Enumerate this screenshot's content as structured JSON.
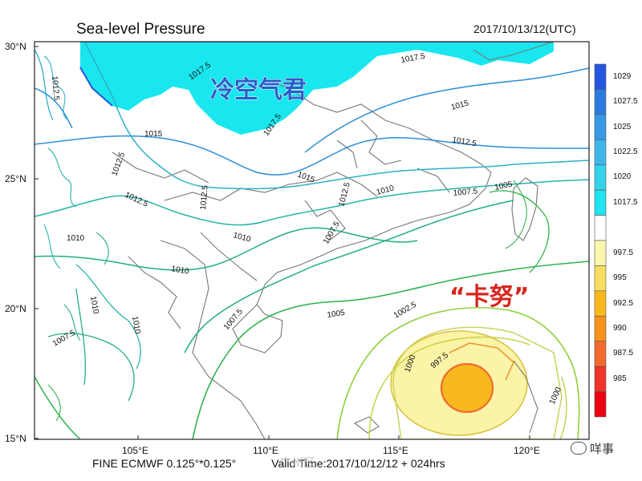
{
  "title": "Sea-level Pressure",
  "valid_date": "2017/10/13/12(UTC)",
  "footer": "FINE ECMWF 0.125°*0.125°",
  "valid_time": "Valid Time:2017/10/12/12 + 024hrs",
  "watermark_text": "广州区",
  "brand_text": "咩事",
  "lat_ticks": [
    "30°N",
    "25°N",
    "20°N",
    "15°N"
  ],
  "lon_ticks": [
    "105°E",
    "110°E",
    "115°E",
    "120°E"
  ],
  "legend": [
    {
      "label": "1029",
      "color": "#2255e0"
    },
    {
      "label": "1027.5",
      "color": "#2b7ae0"
    },
    {
      "label": "1025",
      "color": "#3798e6"
    },
    {
      "label": "1022.5",
      "color": "#3fb6ea"
    },
    {
      "label": "1020",
      "color": "#35d2ec"
    },
    {
      "label": "1017.5",
      "color": "#21e2ee"
    },
    {
      "label": "",
      "color": "#ffffff"
    },
    {
      "label": "997.5",
      "color": "#fbf6ad"
    },
    {
      "label": "995",
      "color": "#f8de60"
    },
    {
      "label": "992.5",
      "color": "#f8b81e"
    },
    {
      "label": "990",
      "color": "#f6921a"
    },
    {
      "label": "987.5",
      "color": "#f26a2c"
    },
    {
      "label": "985",
      "color": "#f2332a"
    },
    {
      "label": "",
      "color": "#ee0010"
    }
  ],
  "annotations": {
    "cold_air": "冷空气君",
    "typhoon": "“卡努”"
  },
  "contour_labels": {
    "c1017_5_a": "1017.5",
    "c1017_5_b": "1017.5",
    "c1017_5_c": "1017.5",
    "c1015_a": "1015",
    "c1015_b": "1015",
    "c1015_c": "1015",
    "c1012_5_a": "1012.5",
    "c1012_5_b": "1012.5",
    "c1012_5_c": "1012.5",
    "c1012_5_d": "1012.5",
    "c1012_5_e": "1012.5",
    "c1012_5_f": "1012.5",
    "c1010_a": "1010",
    "c1010_b": "1010",
    "c1010_c": "1010",
    "c1010_d": "1010",
    "c1010_e": "1010",
    "c1010_f": "1010",
    "c1007_5_a": "1007.5",
    "c1007_5_b": "1007.5",
    "c1007_5_c": "1007.5",
    "c1007_5_d": "1007.5",
    "c1005_a": "1005",
    "c1005_b": "1005",
    "c1002_5": "1002.5",
    "c1000_a": "1000",
    "c1000_b": "1000",
    "c997_5": "997.5"
  }
}
